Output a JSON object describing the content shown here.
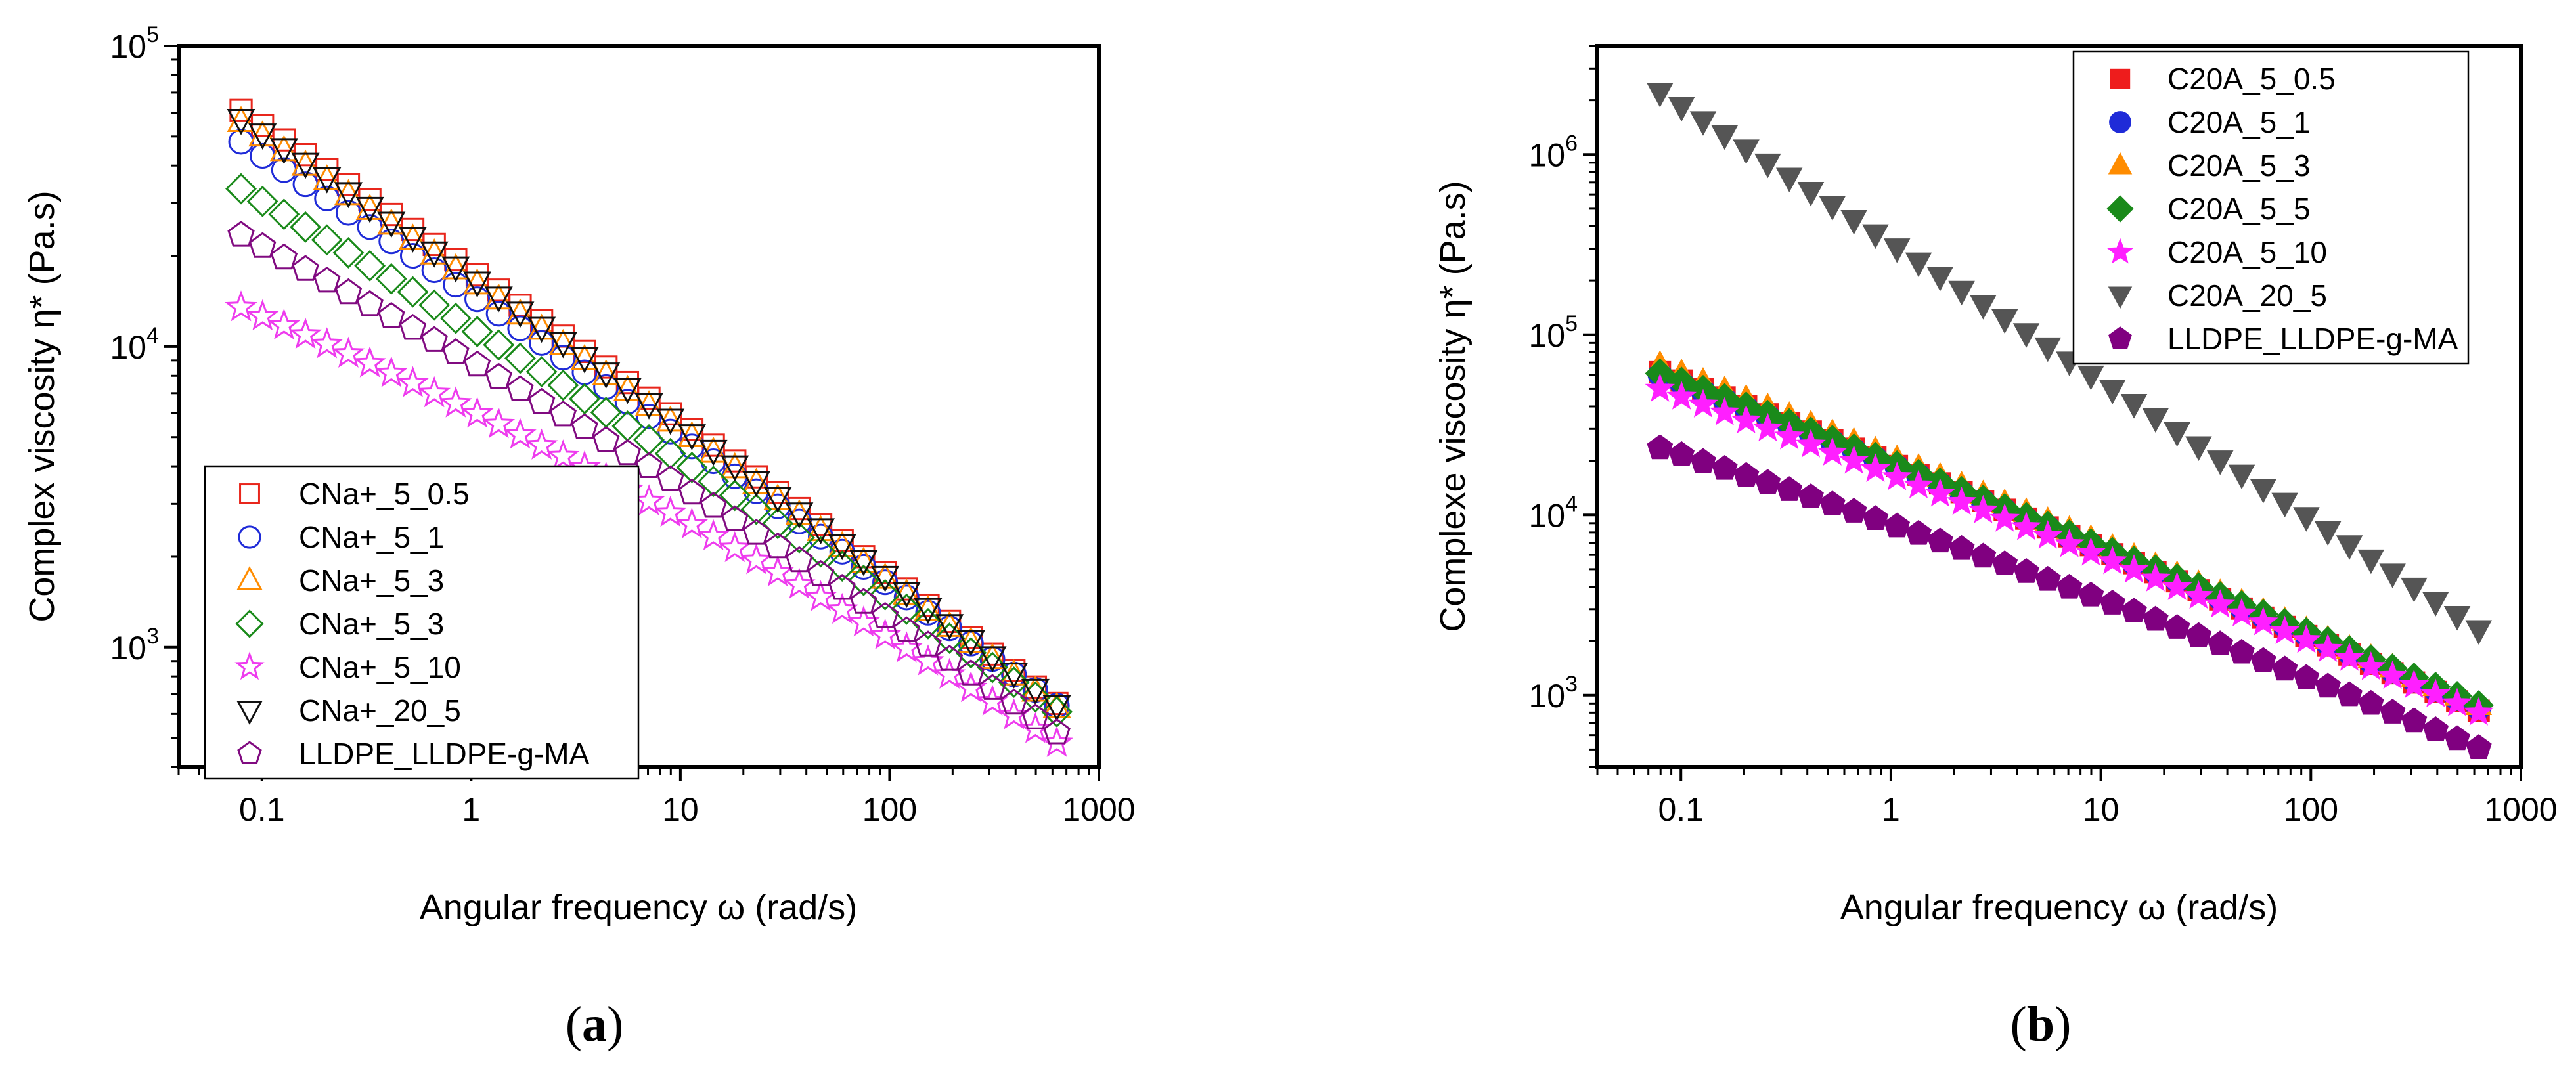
{
  "chart_data": [
    {
      "type": "scatter",
      "panel_label": "a",
      "title": "",
      "xlabel": "Angular frequency ω (rad/s)",
      "ylabel": "Complex viscosity η* (Pa.s)",
      "xscale": "log",
      "yscale": "log",
      "xlim": [
        0.04,
        1000
      ],
      "ylim": [
        400,
        100000
      ],
      "x_ticks": [
        {
          "value": 0.1,
          "label": "0.1"
        },
        {
          "value": 1,
          "label": "1"
        },
        {
          "value": 10,
          "label": "10"
        },
        {
          "value": 100,
          "label": "100"
        },
        {
          "value": 1000,
          "label": "1000"
        }
      ],
      "y_ticks": [
        {
          "value": 1000,
          "base": "10",
          "exp": "3"
        },
        {
          "value": 10000,
          "base": "10",
          "exp": "4"
        },
        {
          "value": 100000,
          "base": "10",
          "exp": "5"
        }
      ],
      "marker_fill": "open",
      "legend_position": "bottom-left",
      "series": [
        {
          "name": "CNa+_5_0.5",
          "marker": "square",
          "color": "#e8261c",
          "start_x": 0.0795,
          "start_y": 61000,
          "end_y": 650,
          "curve": 0.06
        },
        {
          "name": "CNa+_5_1",
          "marker": "circle",
          "color": "#1f2bd8",
          "start_x": 0.0795,
          "start_y": 48000,
          "end_y": 640,
          "curve": 0.05
        },
        {
          "name": "CNa+_5_3",
          "marker": "triangle-up",
          "color": "#ff8c00",
          "start_x": 0.0795,
          "start_y": 56000,
          "end_y": 630,
          "curve": 0.06
        },
        {
          "name": "CNa+_5_3",
          "marker": "diamond",
          "color": "#1a8a1a",
          "start_x": 0.0795,
          "start_y": 33500,
          "end_y": 610,
          "curve": 0.08
        },
        {
          "name": "CNa+_5_10",
          "marker": "star",
          "color": "#ee3bee",
          "start_x": 0.0795,
          "start_y": 13500,
          "end_y": 480,
          "curve": 0.22
        },
        {
          "name": "CNa+_20_5",
          "marker": "triangle-down",
          "color": "#111111",
          "start_x": 0.0795,
          "start_y": 57000,
          "end_y": 640,
          "curve": 0.06
        },
        {
          "name": "LLDPE_LLDPE-g-MA",
          "marker": "pentagon",
          "color": "#800a80",
          "start_x": 0.0795,
          "start_y": 23500,
          "end_y": 520,
          "curve": 0.14
        }
      ],
      "points_per_series": 39,
      "end_x": 630
    },
    {
      "type": "scatter",
      "panel_label": "b",
      "title": "",
      "xlabel": "Angular frequency ω (rad/s)",
      "ylabel": "Complexe viscosity η* (Pa.s)",
      "xscale": "log",
      "yscale": "log",
      "xlim": [
        0.04,
        1000
      ],
      "ylim": [
        400,
        4000000
      ],
      "x_ticks": [
        {
          "value": 0.1,
          "label": "0.1"
        },
        {
          "value": 1,
          "label": "1"
        },
        {
          "value": 10,
          "label": "10"
        },
        {
          "value": 100,
          "label": "100"
        },
        {
          "value": 1000,
          "label": "1000"
        }
      ],
      "y_ticks": [
        {
          "value": 1000,
          "base": "10",
          "exp": "3"
        },
        {
          "value": 10000,
          "base": "10",
          "exp": "4"
        },
        {
          "value": 100000,
          "base": "10",
          "exp": "5"
        },
        {
          "value": 1000000,
          "base": "10",
          "exp": "6"
        }
      ],
      "marker_fill": "solid",
      "legend_position": "top-right",
      "series": [
        {
          "name": "C20A_5_0.5",
          "marker": "square",
          "color": "#ee1c1c",
          "start_x": 0.0795,
          "start_y": 62000,
          "end_y": 820,
          "curve": 0.06
        },
        {
          "name": "C20A_5_1",
          "marker": "circle",
          "color": "#1f2bd8",
          "start_x": 0.0795,
          "start_y": 60000,
          "end_y": 850,
          "curve": 0.06
        },
        {
          "name": "C20A_5_3",
          "marker": "triangle-up",
          "color": "#ff8c00",
          "start_x": 0.0795,
          "start_y": 68000,
          "end_y": 880,
          "curve": 0.06
        },
        {
          "name": "C20A_5_5",
          "marker": "diamond",
          "color": "#1a8a1a",
          "start_x": 0.0795,
          "start_y": 61000,
          "end_y": 880,
          "curve": 0.06
        },
        {
          "name": "C20A_5_10",
          "marker": "star",
          "color": "#ff1fff",
          "start_x": 0.0795,
          "start_y": 50000,
          "end_y": 800,
          "curve": 0.08
        },
        {
          "name": "C20A_20_5",
          "marker": "triangle-down",
          "color": "#555555",
          "start_x": 0.0795,
          "start_y": 2200000,
          "end_y": 2300,
          "curve": 0.0
        },
        {
          "name": "LLDPE_LLDPE-g-MA",
          "marker": "pentagon",
          "color": "#800080",
          "start_x": 0.0795,
          "start_y": 23500,
          "end_y": 510,
          "curve": 0.14
        }
      ],
      "points_per_series": 39,
      "end_x": 630
    }
  ],
  "captions": {
    "a": {
      "open": "(",
      "letter": "a",
      "close": ")"
    },
    "b": {
      "open": "(",
      "letter": "b",
      "close": ")"
    }
  }
}
